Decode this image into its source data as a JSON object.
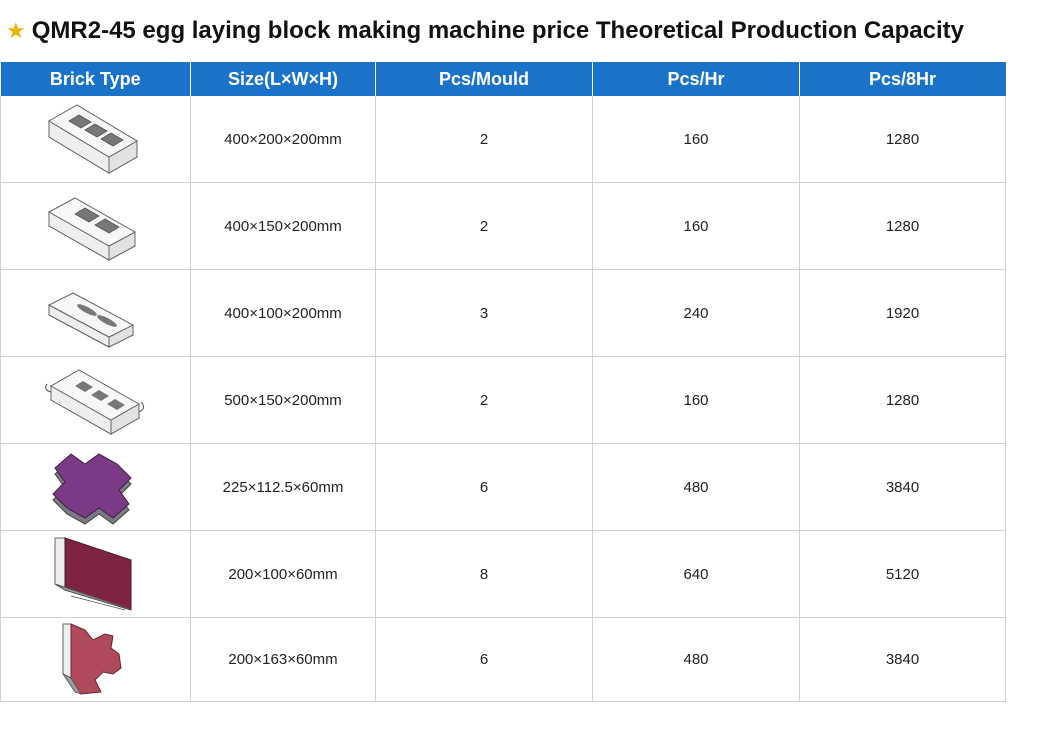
{
  "title": {
    "text": "QMR2-45 egg laying block making machine price Theoretical Production Capacity"
  },
  "table": {
    "headers": [
      "Brick Type",
      "Size(L×W×H)",
      "Pcs/Mould",
      "Pcs/Hr",
      "Pcs/8Hr"
    ],
    "rows": [
      {
        "icon": "hollow-block-3-hole-icon",
        "size": "400×200×200mm",
        "pcs_mould": "2",
        "pcs_hr": "160",
        "pcs_8hr": "1280"
      },
      {
        "icon": "hollow-block-2-hole-icon",
        "size": "400×150×200mm",
        "pcs_mould": "2",
        "pcs_hr": "160",
        "pcs_8hr": "1280"
      },
      {
        "icon": "slotted-block-icon",
        "size": "400×100×200mm",
        "pcs_mould": "3",
        "pcs_hr": "240",
        "pcs_8hr": "1920"
      },
      {
        "icon": "curved-hollow-block-icon",
        "size": "500×150×200mm",
        "pcs_mould": "2",
        "pcs_hr": "160",
        "pcs_8hr": "1280"
      },
      {
        "icon": "interlocking-paver-icon",
        "size": "225×112.5×60mm",
        "pcs_mould": "6",
        "pcs_hr": "480",
        "pcs_8hr": "3840"
      },
      {
        "icon": "rectangular-paver-icon",
        "size": "200×100×60mm",
        "pcs_mould": "8",
        "pcs_hr": "640",
        "pcs_8hr": "5120"
      },
      {
        "icon": "i-shaped-paver-icon",
        "size": "200×163×60mm",
        "pcs_mould": "6",
        "pcs_hr": "480",
        "pcs_8hr": "3840"
      }
    ]
  },
  "colors": {
    "header_bg": "#1b73c9",
    "block_gray": "#9a9aa0",
    "paver_purple": "#7a3a86",
    "paver_maroon": "#7c2440",
    "paver_red": "#b04a5a",
    "star": "#e8b400"
  }
}
